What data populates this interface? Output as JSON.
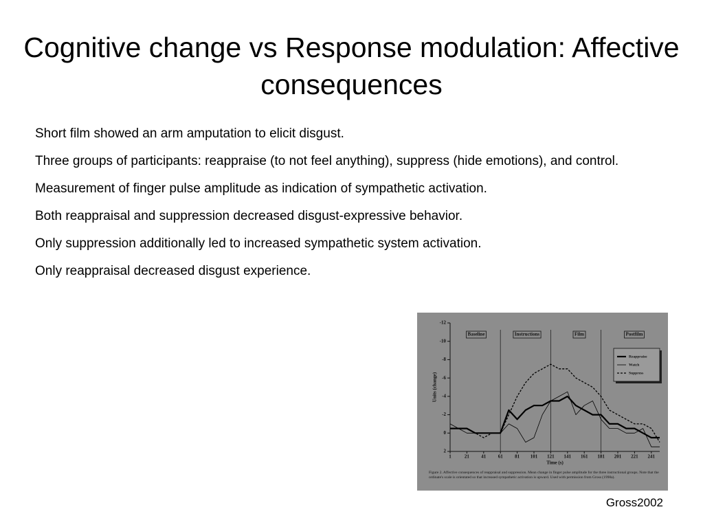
{
  "slide": {
    "title": "Cognitive change vs Response modulation: Affective consequences",
    "bullets": [
      "Short film showed an arm amputation to elicit disgust.",
      "Three groups of participants: reappraise (to not feel anything), suppress (hide emotions), and control.",
      "Measurement of finger pulse amplitude as indication of sympathetic activation.",
      "Both reappraisal and suppression decreased disgust-expressive behavior.",
      "Only suppression additionally led to increased sympathetic system activation.",
      "Only reappraisal decreased disgust experience."
    ],
    "credit": "Gross2002"
  },
  "chart_data": {
    "type": "line",
    "x_label": "Time (s)",
    "y_label": "Units (change)",
    "caption": "Figure 2. Affective consequences of reappraisal and suppression. Mean change in finger pulse amplitude for the three instructional groups. Note that the ordinate's scale is orientated so that increased sympathetic activation is upward. Used with permission from Gross (1998a).",
    "phases": [
      "Baseline",
      "Instructions",
      "Film",
      "Postfilm"
    ],
    "phase_boundaries": [
      61,
      121,
      181
    ],
    "x": [
      1,
      11,
      21,
      31,
      41,
      51,
      61,
      71,
      81,
      91,
      101,
      111,
      121,
      131,
      141,
      151,
      161,
      171,
      181,
      191,
      201,
      211,
      221,
      231,
      241,
      251
    ],
    "series": [
      {
        "name": "Reappraise",
        "color": "#000000",
        "style": "thick",
        "values": [
          -0.5,
          -0.5,
          -0.5,
          0,
          0,
          0,
          0,
          -2.5,
          -1.5,
          -2.5,
          -3,
          -3,
          -3.5,
          -3.5,
          -4,
          -3,
          -2.5,
          -2,
          -2,
          -1,
          -1,
          -0.5,
          -0.5,
          0,
          0.5,
          0.5
        ]
      },
      {
        "name": "Watch",
        "color": "#000000",
        "style": "thin",
        "values": [
          -1,
          -0.5,
          0,
          0,
          0,
          0,
          0,
          -1,
          -0.5,
          1,
          0.5,
          -2,
          -3.5,
          -4,
          -4.5,
          -2,
          -3,
          -3.5,
          -1.5,
          -0.5,
          -0.5,
          0,
          0,
          -0.5,
          1.5,
          1.5
        ]
      },
      {
        "name": "Suppress",
        "color": "#000000",
        "style": "dashed",
        "values": [
          -0.5,
          -0.5,
          -0.5,
          0,
          0.5,
          0,
          0,
          -2,
          -4,
          -5.5,
          -6.5,
          -7,
          -7.5,
          -7,
          -7,
          -6,
          -5.5,
          -5,
          -4,
          -2.5,
          -2,
          -1.5,
          -1,
          -1,
          -0.5,
          1
        ]
      }
    ],
    "xlim": [
      1,
      251
    ],
    "xticks": [
      1,
      21,
      41,
      61,
      81,
      101,
      121,
      141,
      161,
      181,
      201,
      221,
      241
    ],
    "ylim": [
      2,
      -12
    ],
    "yticks": [
      2,
      0,
      -2,
      -4,
      -6,
      -8,
      -10,
      -12
    ],
    "legend": "upper right"
  }
}
